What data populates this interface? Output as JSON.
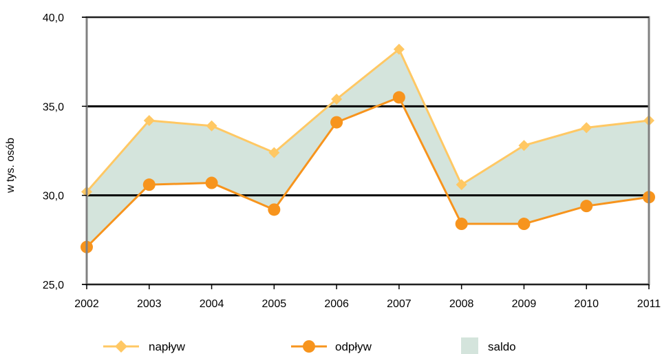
{
  "chart_data": {
    "type": "line",
    "title": "",
    "ylabel": "w tys. osób",
    "xlabel": "",
    "categories": [
      "2002",
      "2003",
      "2004",
      "2005",
      "2006",
      "2007",
      "2008",
      "2009",
      "2010",
      "2011"
    ],
    "y_ticks": [
      "25,0",
      "30,0",
      "35,0",
      "40,0"
    ],
    "ylim": [
      25,
      40
    ],
    "grid": "horizontal major lines at 30,0 and 35,0",
    "legend_position": "bottom",
    "series": [
      {
        "name": "napływ",
        "values": [
          30.2,
          34.2,
          33.9,
          32.4,
          35.4,
          38.2,
          30.6,
          32.8,
          33.8,
          34.2
        ],
        "color": "#ffc864",
        "marker": "diamond"
      },
      {
        "name": "odpływ",
        "values": [
          27.1,
          30.6,
          30.7,
          29.2,
          34.1,
          35.5,
          28.4,
          28.4,
          29.4,
          29.9
        ],
        "color": "#f7941d",
        "marker": "circle"
      }
    ],
    "area": {
      "name": "saldo",
      "color": "#d4e4dc"
    }
  }
}
